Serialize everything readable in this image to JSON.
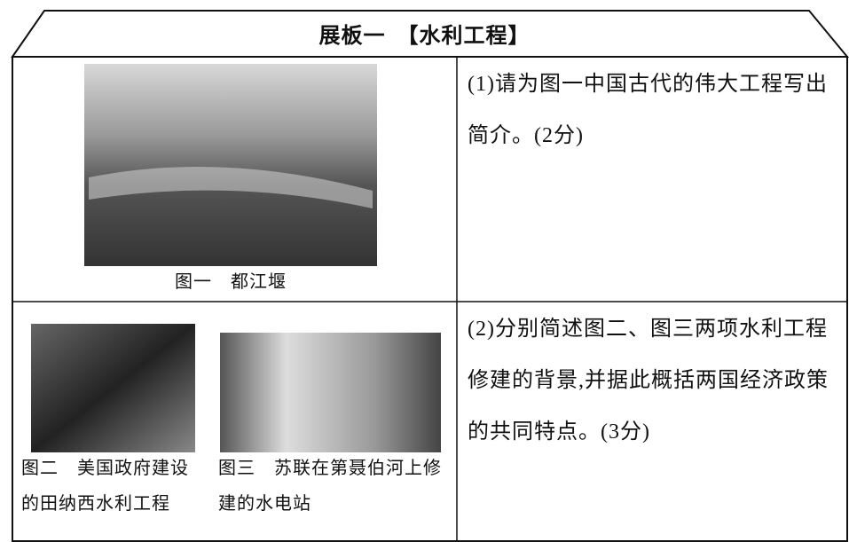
{
  "header": {
    "title": "展板一　【水利工程】"
  },
  "table": {
    "rows": [
      {
        "captions": [
          "图一　都江堰"
        ],
        "question": "(1)请为图一中国古代的伟大工程写出简介。(2分)"
      },
      {
        "captions": [
          "图二　美国政府建设的田纳西水利工程",
          "图三　苏联在第聂伯河上修建的水电站"
        ],
        "question": "(2)分别简述图二、图三两项水利工程修建的背景,并据此概括两国经济政策的共同特点。(3分)"
      }
    ]
  }
}
